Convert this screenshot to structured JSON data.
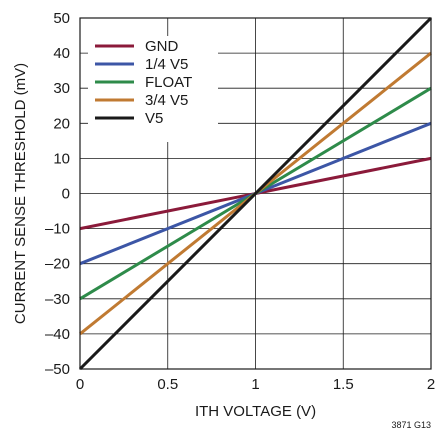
{
  "chart_data": {
    "type": "line",
    "title": "",
    "xlabel": "ITH VOLTAGE (V)",
    "ylabel": "CURRENT SENSE THRESHOLD (mV)",
    "xlim": [
      0,
      2
    ],
    "ylim": [
      -50,
      50
    ],
    "xticks": [
      0,
      0.5,
      1,
      1.5,
      2
    ],
    "xtick_labels": [
      "0",
      "0.5",
      "1",
      "1.5",
      "2"
    ],
    "yticks": [
      -50,
      -40,
      -30,
      -20,
      -10,
      0,
      10,
      20,
      30,
      40,
      50
    ],
    "ytick_labels": [
      "–50",
      "–40",
      "–30",
      "–20",
      "–10",
      "0",
      "10",
      "20",
      "30",
      "40",
      "50"
    ],
    "grid": true,
    "legend_position": "top-left",
    "series": [
      {
        "name": "GND",
        "color": "#8b1a3a",
        "x": [
          0,
          1,
          2
        ],
        "y": [
          -10,
          0,
          10
        ]
      },
      {
        "name": "1/4 V5",
        "color": "#3c56a6",
        "x": [
          0,
          1,
          2
        ],
        "y": [
          -20,
          0,
          20
        ]
      },
      {
        "name": "FLOAT",
        "color": "#2e8b4a",
        "x": [
          0,
          1,
          2
        ],
        "y": [
          -30,
          0,
          30
        ]
      },
      {
        "name": "3/4 V5",
        "color": "#c07a32",
        "x": [
          0,
          1,
          2
        ],
        "y": [
          -40,
          0,
          40
        ]
      },
      {
        "name": "V5",
        "color": "#1a1a1a",
        "x": [
          0,
          1,
          2
        ],
        "y": [
          -50,
          0,
          50
        ]
      }
    ]
  },
  "figure_id": "3871 G13"
}
